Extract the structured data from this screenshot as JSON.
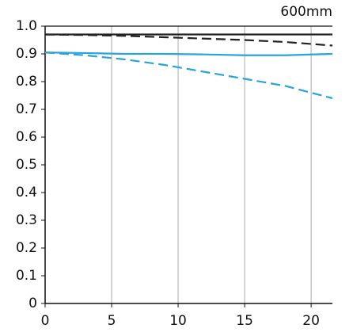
{
  "chart_data": {
    "type": "line",
    "title": "600mm",
    "x": [
      0,
      3,
      6,
      9,
      12,
      15,
      18,
      21.6
    ],
    "series": [
      {
        "color": "#222222",
        "linestyle": "solid",
        "values": [
          0.97,
          0.97,
          0.97,
          0.97,
          0.97,
          0.97,
          0.97,
          0.97
        ]
      },
      {
        "color": "#222222",
        "linestyle": "dashed",
        "values": [
          0.97,
          0.968,
          0.965,
          0.96,
          0.955,
          0.95,
          0.943,
          0.93
        ]
      },
      {
        "color": "#29a3dc",
        "linestyle": "solid",
        "values": [
          0.905,
          0.903,
          0.9,
          0.9,
          0.898,
          0.895,
          0.895,
          0.9
        ]
      },
      {
        "color": "#29a3dc",
        "linestyle": "dashed",
        "values": [
          0.905,
          0.895,
          0.88,
          0.86,
          0.835,
          0.81,
          0.785,
          0.74
        ]
      }
    ],
    "xlim": [
      0,
      21.6
    ],
    "xticks": [
      0,
      5,
      10,
      15,
      20
    ],
    "ylim": [
      0,
      1
    ],
    "yticks": [
      0,
      0.1,
      0.2,
      0.3,
      0.4,
      0.5,
      0.6,
      0.7,
      0.8,
      0.9,
      {
        "value": 1,
        "label": "1.0"
      }
    ],
    "grid": "x"
  }
}
